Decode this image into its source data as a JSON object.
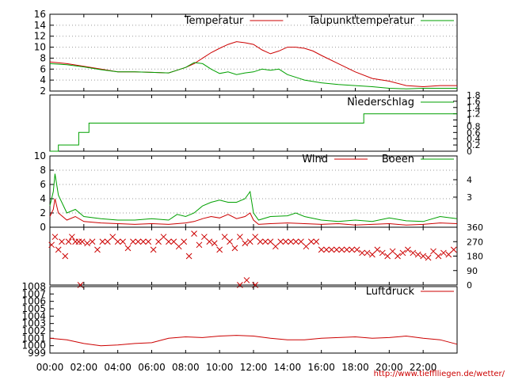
{
  "colors": {
    "red": "#cc0000",
    "green": "#00a000",
    "grid": "#999999",
    "axis": "#000000"
  },
  "x_axis": {
    "ticks": [
      "00:00",
      "02:00",
      "04:00",
      "06:00",
      "08:00",
      "10:00",
      "12:00",
      "14:00",
      "16:00",
      "18:00",
      "20:00",
      "22:00"
    ],
    "range_hours": [
      0,
      24
    ]
  },
  "credit": "http://www.tiefflliegen.de/wetter/",
  "chart_data": [
    {
      "type": "line",
      "panel": "temperature",
      "ylim": [
        2,
        16
      ],
      "y_ticks": [
        "16",
        "14",
        "12",
        "10",
        "8",
        "6",
        "4",
        "2"
      ],
      "grid": true,
      "legend": "top-right",
      "series": [
        {
          "name": "Temperatur",
          "color": "#cc0000",
          "x": [
            0,
            1,
            2,
            3,
            4,
            5,
            6,
            7,
            7.5,
            8,
            8.5,
            9,
            9.5,
            10,
            10.5,
            11,
            11.5,
            12,
            12.5,
            13,
            13.5,
            14,
            14.5,
            15,
            15.5,
            16,
            17,
            18,
            19,
            20,
            21,
            22,
            23,
            24
          ],
          "y": [
            7.3,
            7.0,
            6.5,
            6.0,
            5.5,
            5.5,
            5.4,
            5.3,
            5.8,
            6.3,
            7.0,
            8.0,
            9.0,
            9.8,
            10.5,
            11.0,
            10.8,
            10.5,
            9.5,
            8.8,
            9.3,
            10.0,
            10.0,
            9.8,
            9.3,
            8.5,
            7.0,
            5.5,
            4.3,
            3.8,
            3.0,
            2.8,
            3.0,
            3.0
          ]
        },
        {
          "name": "Taupunkttemperatur",
          "color": "#00a000",
          "x": [
            0,
            1,
            2,
            3,
            4,
            5,
            6,
            7,
            7.5,
            8,
            8.5,
            9,
            9.5,
            10,
            10.5,
            11,
            11.5,
            12,
            12.5,
            13,
            13.5,
            14,
            15,
            16,
            17,
            18,
            19,
            20,
            21,
            22,
            23,
            24
          ],
          "y": [
            7.0,
            6.8,
            6.4,
            5.9,
            5.5,
            5.5,
            5.4,
            5.3,
            5.8,
            6.3,
            7.2,
            7.0,
            6.0,
            5.2,
            5.5,
            5.0,
            5.3,
            5.5,
            6.0,
            5.8,
            6.0,
            5.0,
            4.0,
            3.5,
            3.2,
            3.0,
            2.8,
            2.5,
            2.4,
            2.5,
            2.5,
            2.5
          ]
        }
      ]
    },
    {
      "type": "line",
      "panel": "precipitation",
      "ylim": [
        0,
        1.8
      ],
      "y_ticks_right": [
        "1.8",
        "1.6",
        "1.4",
        "1.2",
        "1",
        "0.8",
        "0.6",
        "0.4",
        "0.2",
        "0"
      ],
      "legend": "top-right",
      "series": [
        {
          "name": "Niederschlag",
          "color": "#00a000",
          "x": [
            0,
            0.5,
            0.5,
            1.7,
            1.7,
            2.3,
            2.3,
            18.5,
            18.5,
            24
          ],
          "y": [
            0,
            0,
            0.2,
            0.2,
            0.6,
            0.6,
            0.9,
            0.9,
            1.2,
            1.2
          ]
        }
      ]
    },
    {
      "type": "line",
      "panel": "wind",
      "ylim": [
        0,
        10
      ],
      "y_ticks": [
        "10",
        "8",
        "6",
        "4",
        "2",
        "0"
      ],
      "y_ticks_right": [
        "4",
        "3"
      ],
      "grid": true,
      "legend": "top-right",
      "series": [
        {
          "name": "Wind",
          "color": "#cc0000",
          "x": [
            0,
            0.2,
            0.3,
            0.5,
            1,
            1.5,
            2,
            3,
            4,
            5,
            6,
            7,
            8,
            8.5,
            9,
            9.5,
            10,
            10.5,
            11,
            11.5,
            11.8,
            12,
            12.3,
            13,
            14,
            15,
            16,
            17,
            18,
            19,
            20,
            21,
            22,
            23,
            24
          ],
          "y": [
            1.5,
            2.5,
            4.0,
            2.0,
            1.0,
            1.5,
            0.8,
            0.6,
            0.5,
            0.4,
            0.5,
            0.4,
            0.6,
            0.8,
            1.2,
            1.5,
            1.3,
            1.8,
            1.2,
            1.5,
            2.0,
            1.0,
            0.4,
            0.5,
            0.6,
            0.5,
            0.4,
            0.5,
            0.3,
            0.4,
            0.5,
            0.3,
            0.4,
            0.6,
            0.5
          ]
        },
        {
          "name": "Boeen",
          "color": "#00a000",
          "x": [
            0,
            0.2,
            0.3,
            0.5,
            0.8,
            1,
            1.5,
            2,
            3,
            4,
            5,
            6,
            7,
            7.5,
            8,
            8.5,
            9,
            9.5,
            10,
            10.5,
            11,
            11.5,
            11.8,
            12,
            12.3,
            13,
            14,
            14.5,
            15,
            16,
            17,
            18,
            19,
            20,
            21,
            22,
            23,
            24
          ],
          "y": [
            3.0,
            5.0,
            7.5,
            4.5,
            3.0,
            2.0,
            2.5,
            1.5,
            1.2,
            1.0,
            1.0,
            1.2,
            1.0,
            1.8,
            1.5,
            2.0,
            3.0,
            3.5,
            3.8,
            3.5,
            3.5,
            4.0,
            5.0,
            2.0,
            1.0,
            1.5,
            1.6,
            2.0,
            1.5,
            1.0,
            0.8,
            1.0,
            0.8,
            1.3,
            0.9,
            0.8,
            1.5,
            1.2
          ]
        }
      ]
    },
    {
      "type": "scatter",
      "panel": "wind_direction",
      "ylim": [
        0,
        360
      ],
      "y_ticks_right": [
        "360",
        "270",
        "180",
        "90",
        "0"
      ],
      "series": [
        {
          "name": "",
          "color": "#cc0000",
          "marker": "x",
          "x": [
            0.1,
            0.3,
            0.5,
            0.7,
            0.9,
            1.1,
            1.3,
            1.5,
            1.7,
            1.9,
            2.2,
            2.5,
            2.8,
            3.1,
            3.4,
            3.7,
            4.0,
            4.3,
            4.6,
            4.9,
            5.2,
            5.5,
            5.8,
            6.1,
            6.4,
            6.7,
            7.0,
            7.3,
            7.6,
            7.9,
            8.2,
            8.5,
            8.8,
            9.1,
            9.4,
            9.7,
            10.0,
            10.3,
            10.6,
            10.9,
            11.2,
            11.5,
            11.8,
            12.1,
            12.4,
            12.7,
            13.0,
            13.3,
            13.6,
            13.9,
            14.2,
            14.5,
            14.8,
            15.1,
            15.4,
            15.7,
            16.0,
            16.3,
            16.6,
            16.9,
            17.2,
            17.5,
            17.8,
            18.1,
            18.4,
            18.7,
            19.0,
            19.3,
            19.6,
            19.9,
            20.2,
            20.5,
            20.8,
            21.1,
            21.4,
            21.7,
            22.0,
            22.3,
            22.6,
            22.9,
            23.2,
            23.5,
            23.8,
            1.8,
            11.2,
            12.1,
            11.6
          ],
          "y": [
            250,
            300,
            220,
            270,
            180,
            270,
            300,
            270,
            270,
            270,
            260,
            270,
            220,
            270,
            270,
            300,
            270,
            270,
            230,
            270,
            270,
            270,
            270,
            220,
            270,
            300,
            270,
            270,
            240,
            270,
            180,
            320,
            250,
            300,
            270,
            260,
            220,
            300,
            270,
            230,
            300,
            260,
            270,
            300,
            270,
            270,
            270,
            240,
            270,
            270,
            270,
            270,
            270,
            240,
            270,
            270,
            220,
            220,
            220,
            220,
            220,
            220,
            220,
            220,
            200,
            200,
            190,
            220,
            200,
            180,
            210,
            180,
            200,
            220,
            200,
            190,
            180,
            170,
            210,
            180,
            200,
            190,
            220,
            0,
            0,
            0,
            30
          ]
        }
      ]
    },
    {
      "type": "line",
      "panel": "pressure",
      "ylim": [
        999,
        1008
      ],
      "y_ticks": [
        "1008",
        "1007",
        "1006",
        "1005",
        "1004",
        "1003",
        "1002",
        "1001",
        "1000",
        "999"
      ],
      "legend": "top-right",
      "series": [
        {
          "name": "Luftdruck",
          "color": "#cc0000",
          "x": [
            0,
            1,
            2,
            3,
            4,
            5,
            6,
            7,
            8,
            9,
            10,
            11,
            12,
            13,
            14,
            15,
            16,
            17,
            18,
            19,
            20,
            21,
            22,
            23,
            24
          ],
          "y": [
            1001.0,
            1000.8,
            1000.3,
            1000.0,
            1000.1,
            1000.3,
            1000.4,
            1001.0,
            1001.2,
            1001.1,
            1001.3,
            1001.4,
            1001.3,
            1001.0,
            1000.8,
            1000.8,
            1001.0,
            1001.1,
            1001.2,
            1001.0,
            1001.1,
            1001.3,
            1001.0,
            1000.8,
            1000.2
          ]
        }
      ]
    }
  ]
}
